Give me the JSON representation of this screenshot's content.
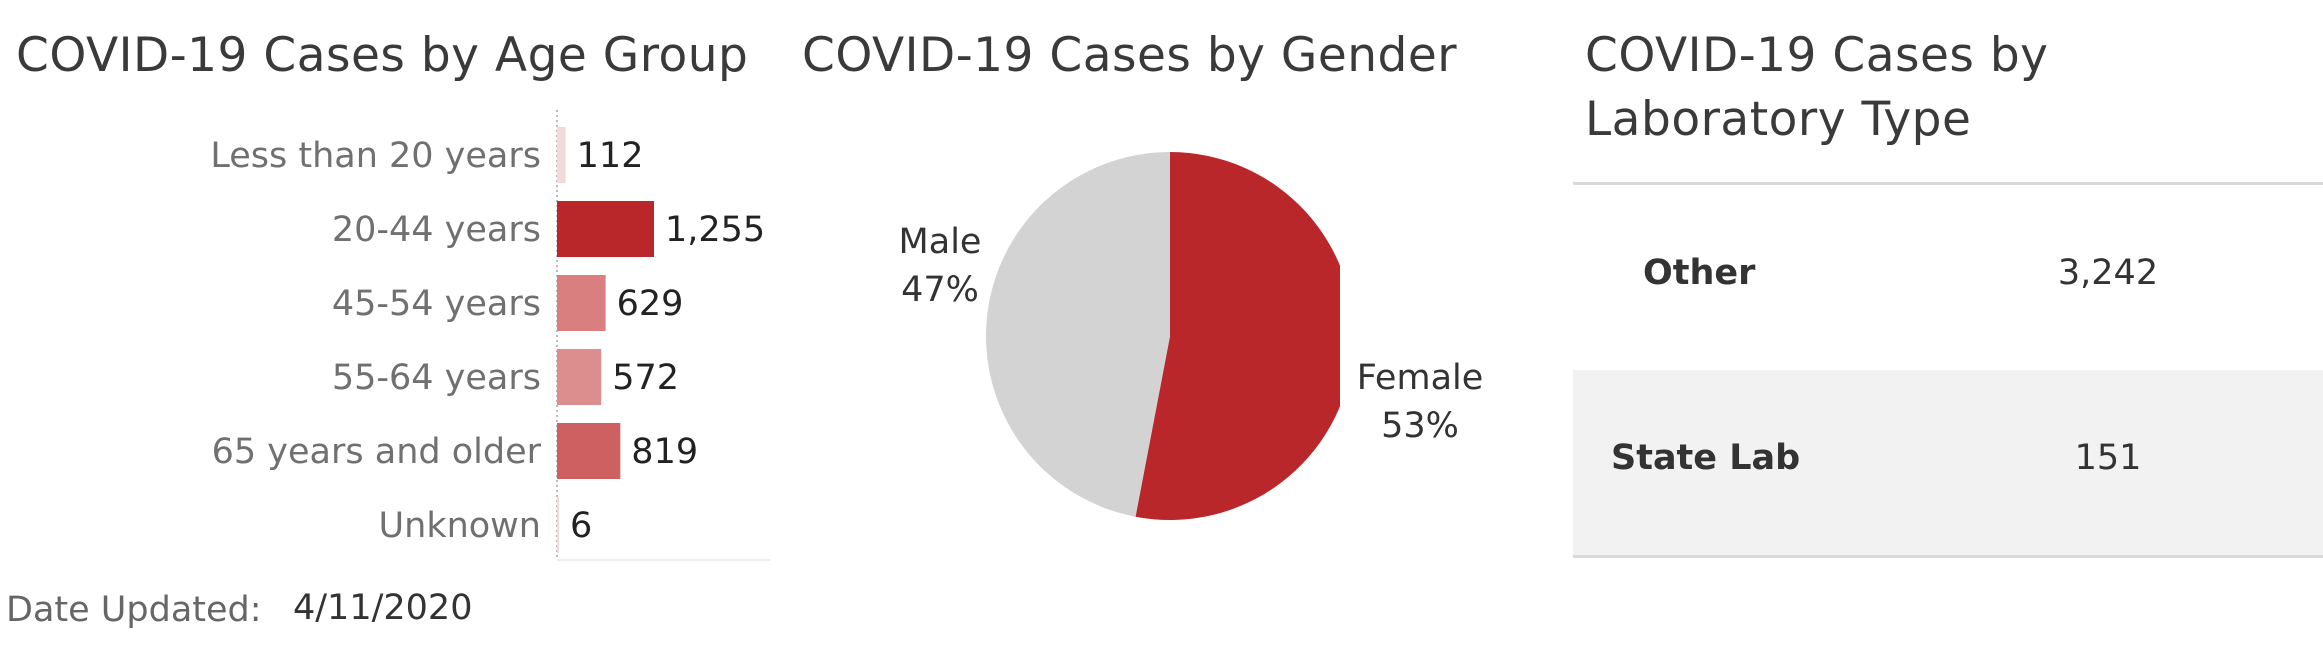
{
  "age_section": {
    "title": "COVID-19 Cases by Age Group"
  },
  "gender_section": {
    "title": "COVID-19 Cases by Gender",
    "male_name": "Male",
    "male_pct": "47%",
    "female_name": "Female",
    "female_pct": "53%"
  },
  "lab_section": {
    "title": "COVID-19 Cases by Laboratory Type",
    "rows": [
      {
        "name": "Other",
        "value": "3,242"
      },
      {
        "name": "State Lab",
        "value": "151"
      }
    ]
  },
  "footer": {
    "date_label": "Date Updated:",
    "date_value": "4/11/2020"
  },
  "colors": {
    "less20": "#f2d9da",
    "age20_44": "#b9272b",
    "age45_54": "#d97f80",
    "age55_64": "#dc8d8e",
    "age65": "#cf6062",
    "unknown": "#f2d9da",
    "female": "#b9272b",
    "male": "#d3d3d3"
  },
  "chart_data": [
    {
      "type": "bar",
      "orientation": "horizontal",
      "title": "COVID-19 Cases by Age Group",
      "categories": [
        "Less than 20 years",
        "20-44 years",
        "45-54 years",
        "55-64 years",
        "65 years and older",
        "Unknown"
      ],
      "values": [
        112,
        1255,
        629,
        572,
        819,
        6
      ],
      "value_labels": [
        "112",
        "1,255",
        "629",
        "572",
        "819",
        "6"
      ],
      "xlim": [
        0,
        1255
      ]
    },
    {
      "type": "pie",
      "title": "COVID-19 Cases by Gender",
      "labels": [
        "Female",
        "Male"
      ],
      "values": [
        53,
        47
      ]
    }
  ]
}
